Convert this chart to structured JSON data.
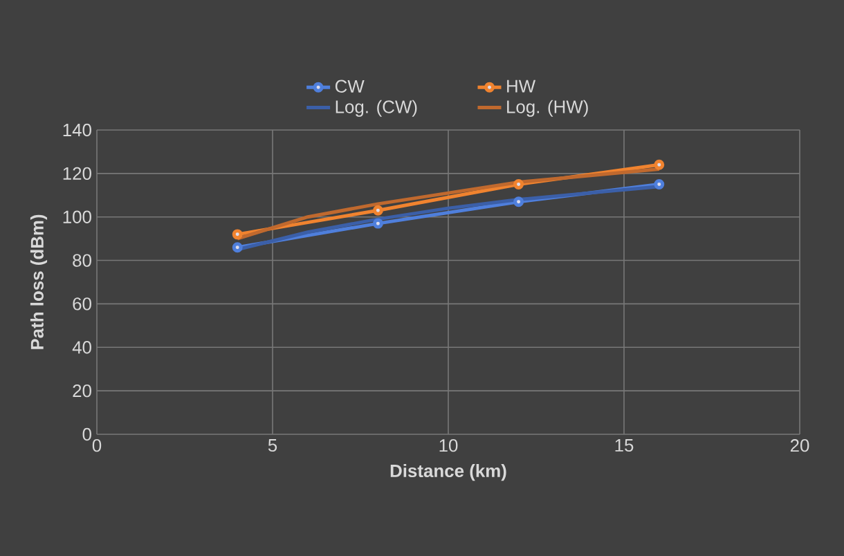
{
  "chart_data": {
    "type": "line",
    "xlabel": "Distance (km)",
    "ylabel": "Path loss (dBm)",
    "xlim": [
      0,
      20
    ],
    "xticks": [
      0,
      5,
      10,
      15,
      20
    ],
    "ylim": [
      0,
      140
    ],
    "yticks": [
      0,
      20,
      40,
      60,
      80,
      100,
      120,
      140
    ],
    "grid": true,
    "legend": "top",
    "marker": "circle",
    "series": [
      {
        "name": "CW",
        "color": "#4f7fdc",
        "x": [
          4,
          8,
          12,
          16
        ],
        "values": [
          86,
          97,
          107,
          115
        ]
      },
      {
        "name": "HW",
        "color": "#f0832f",
        "x": [
          4,
          8,
          12,
          16
        ],
        "values": [
          92,
          103,
          115,
          124
        ]
      },
      {
        "name": "Log. (CW)",
        "color": "#3b5fa8",
        "marker": "none",
        "x": [
          4,
          6,
          8,
          10,
          12,
          14,
          16
        ],
        "values": [
          85,
          93,
          99,
          104,
          108,
          111,
          114
        ]
      },
      {
        "name": "Log. (HW)",
        "color": "#c0692e",
        "marker": "none",
        "x": [
          4,
          6,
          8,
          10,
          12,
          14,
          16
        ],
        "values": [
          90,
          100,
          106,
          111,
          116,
          119,
          122
        ]
      }
    ]
  }
}
